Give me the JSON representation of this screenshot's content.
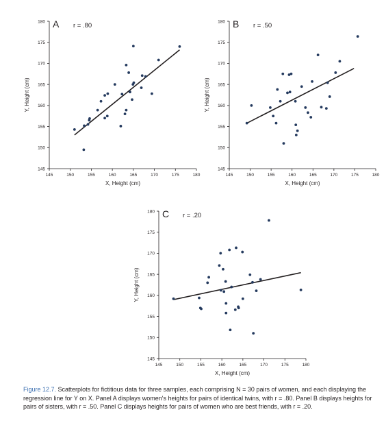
{
  "caption": {
    "label": "Figure 12.7.",
    "text": "Scatterplots for fictitious data for three samples, each comprising N = 30 pairs of women, and each displaying the regression line for Y on X. Panel A displays women's heights for pairs of identical twins, with r = .80. Panel B displays heights for pairs of sisters, with r = .50. Panel C displays heights for pairs of women who are best friends, with r = .20."
  },
  "chart_data": [
    {
      "type": "scatter",
      "panel": "A",
      "annotation": "r = .80",
      "xlabel": "X, Height (cm)",
      "ylabel": "Y, Height (cm)",
      "xlim": [
        145,
        180
      ],
      "ylim": [
        145,
        180
      ],
      "xticks": [
        145,
        150,
        155,
        160,
        165,
        170,
        175,
        180
      ],
      "yticks": [
        145,
        150,
        155,
        160,
        165,
        170,
        175,
        180
      ],
      "grid": false,
      "points": [
        {
          "x": 151.0,
          "y": 154.3
        },
        {
          "x": 153.2,
          "y": 149.5
        },
        {
          "x": 153.3,
          "y": 155.2
        },
        {
          "x": 154.2,
          "y": 155.5
        },
        {
          "x": 154.5,
          "y": 156.5
        },
        {
          "x": 154.6,
          "y": 156.9
        },
        {
          "x": 156.5,
          "y": 158.9
        },
        {
          "x": 157.3,
          "y": 161.0
        },
        {
          "x": 158.2,
          "y": 162.4
        },
        {
          "x": 158.2,
          "y": 157.0
        },
        {
          "x": 158.8,
          "y": 157.5
        },
        {
          "x": 158.9,
          "y": 162.8
        },
        {
          "x": 160.6,
          "y": 165.0
        },
        {
          "x": 162.0,
          "y": 155.1
        },
        {
          "x": 162.3,
          "y": 162.7
        },
        {
          "x": 163.0,
          "y": 158.0
        },
        {
          "x": 163.3,
          "y": 158.9
        },
        {
          "x": 163.3,
          "y": 169.6
        },
        {
          "x": 163.9,
          "y": 167.8
        },
        {
          "x": 164.2,
          "y": 163.2
        },
        {
          "x": 164.7,
          "y": 161.4
        },
        {
          "x": 164.9,
          "y": 165.0
        },
        {
          "x": 165.0,
          "y": 174.1
        },
        {
          "x": 165.1,
          "y": 165.4
        },
        {
          "x": 166.9,
          "y": 164.2
        },
        {
          "x": 167.1,
          "y": 167.1
        },
        {
          "x": 167.9,
          "y": 166.9
        },
        {
          "x": 169.4,
          "y": 162.8
        },
        {
          "x": 171.0,
          "y": 170.8
        },
        {
          "x": 176.0,
          "y": 174.0
        }
      ],
      "regression_line": {
        "x": [
          151.0,
          176.0
        ],
        "y": [
          153.0,
          173.2
        ]
      }
    },
    {
      "type": "scatter",
      "panel": "B",
      "annotation": "r = .50",
      "xlabel": "X, Height (cm)",
      "ylabel": "Y, Height (cm)",
      "xlim": [
        145,
        180
      ],
      "ylim": [
        145,
        180
      ],
      "xticks": [
        145,
        150,
        155,
        160,
        165,
        170,
        175,
        180
      ],
      "yticks": [
        145,
        150,
        155,
        160,
        165,
        170,
        175,
        180
      ],
      "grid": false,
      "points": [
        {
          "x": 149.2,
          "y": 155.8
        },
        {
          "x": 150.3,
          "y": 160.0
        },
        {
          "x": 154.8,
          "y": 159.5
        },
        {
          "x": 155.5,
          "y": 157.5
        },
        {
          "x": 156.2,
          "y": 155.8
        },
        {
          "x": 156.5,
          "y": 163.8
        },
        {
          "x": 157.2,
          "y": 161.0
        },
        {
          "x": 157.8,
          "y": 167.5
        },
        {
          "x": 158.0,
          "y": 151.0
        },
        {
          "x": 158.9,
          "y": 163.0
        },
        {
          "x": 159.3,
          "y": 167.3
        },
        {
          "x": 159.8,
          "y": 167.5
        },
        {
          "x": 160.8,
          "y": 161.0
        },
        {
          "x": 160.9,
          "y": 155.4
        },
        {
          "x": 161.0,
          "y": 153.0
        },
        {
          "x": 161.3,
          "y": 154.0
        },
        {
          "x": 162.3,
          "y": 164.5
        },
        {
          "x": 163.2,
          "y": 159.5
        },
        {
          "x": 163.8,
          "y": 158.3
        },
        {
          "x": 164.5,
          "y": 157.2
        },
        {
          "x": 164.8,
          "y": 165.7
        },
        {
          "x": 166.2,
          "y": 172.0
        },
        {
          "x": 167.0,
          "y": 159.6
        },
        {
          "x": 168.2,
          "y": 159.3
        },
        {
          "x": 168.5,
          "y": 165.4
        },
        {
          "x": 169.0,
          "y": 162.1
        },
        {
          "x": 170.4,
          "y": 167.8
        },
        {
          "x": 171.4,
          "y": 170.5
        },
        {
          "x": 175.7,
          "y": 176.4
        },
        {
          "x": 159.5,
          "y": 163.2
        }
      ],
      "regression_line": {
        "x": [
          149.2,
          174.8
        ],
        "y": [
          155.8,
          168.8
        ]
      }
    },
    {
      "type": "scatter",
      "panel": "C",
      "annotation": "r = .20",
      "xlabel": "X, Height (cm)",
      "ylabel": "Y, Height (cm)",
      "xlim": [
        145,
        180
      ],
      "ylim": [
        145,
        180
      ],
      "xticks": [
        145,
        150,
        155,
        160,
        165,
        170,
        175,
        180
      ],
      "yticks": [
        145,
        150,
        155,
        160,
        165,
        170,
        175,
        180
      ],
      "grid": false,
      "points": [
        {
          "x": 148.5,
          "y": 159.2
        },
        {
          "x": 154.6,
          "y": 159.4
        },
        {
          "x": 154.9,
          "y": 157.0
        },
        {
          "x": 155.1,
          "y": 156.8
        },
        {
          "x": 156.6,
          "y": 163.0
        },
        {
          "x": 156.9,
          "y": 164.3
        },
        {
          "x": 159.4,
          "y": 167.1
        },
        {
          "x": 159.7,
          "y": 170.0
        },
        {
          "x": 159.8,
          "y": 161.2
        },
        {
          "x": 160.3,
          "y": 166.2
        },
        {
          "x": 160.5,
          "y": 160.9
        },
        {
          "x": 160.9,
          "y": 163.3
        },
        {
          "x": 161.0,
          "y": 158.1
        },
        {
          "x": 161.0,
          "y": 155.8
        },
        {
          "x": 161.8,
          "y": 170.8
        },
        {
          "x": 162.0,
          "y": 151.8
        },
        {
          "x": 162.3,
          "y": 162.0
        },
        {
          "x": 163.2,
          "y": 156.6
        },
        {
          "x": 163.4,
          "y": 171.3
        },
        {
          "x": 163.9,
          "y": 157.3
        },
        {
          "x": 164.9,
          "y": 170.3
        },
        {
          "x": 165.0,
          "y": 159.2
        },
        {
          "x": 166.7,
          "y": 164.9
        },
        {
          "x": 167.3,
          "y": 163.1
        },
        {
          "x": 167.5,
          "y": 151.0
        },
        {
          "x": 168.2,
          "y": 161.1
        },
        {
          "x": 169.2,
          "y": 163.8
        },
        {
          "x": 171.2,
          "y": 177.8
        },
        {
          "x": 178.8,
          "y": 161.3
        },
        {
          "x": 164.0,
          "y": 157.0
        }
      ],
      "regression_line": {
        "x": [
          148.5,
          178.8
        ],
        "y": [
          159.0,
          165.4
        ]
      }
    }
  ]
}
